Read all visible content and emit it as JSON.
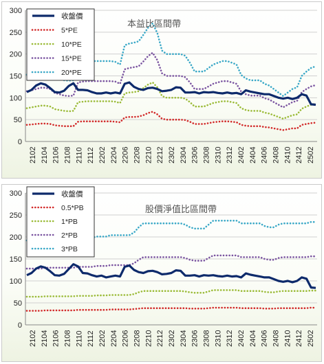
{
  "chart_data": [
    {
      "type": "line",
      "title": "本益比區間帶",
      "ylim": [
        0,
        300
      ],
      "yticks": [
        0,
        50,
        100,
        150,
        200,
        250,
        300
      ],
      "xtick_labels": [
        "2102",
        "2104",
        "2106",
        "2108",
        "2110",
        "2112",
        "2202",
        "2204",
        "2206",
        "2208",
        "2210",
        "2212",
        "2302",
        "2304",
        "2306",
        "2308",
        "2310",
        "2312",
        "2402",
        "2404",
        "2406",
        "2408",
        "2410",
        "2412",
        "2502"
      ],
      "grid": true,
      "legend_position": "top-left",
      "series": [
        {
          "name": "收盤價",
          "color": "#0d2a6b",
          "style": "solid",
          "values": [
            113,
            118,
            128,
            133,
            130,
            122,
            113,
            112,
            116,
            127,
            133,
            118,
            118,
            117,
            113,
            110,
            110,
            112,
            110,
            112,
            110,
            132,
            135,
            125,
            120,
            118,
            122,
            123,
            120,
            115,
            116,
            118,
            124,
            123,
            112,
            112,
            113,
            110,
            113,
            112,
            113,
            111,
            110,
            112,
            110,
            111,
            108,
            117,
            114,
            112,
            110,
            108,
            108,
            104,
            100,
            98,
            100,
            97,
            100,
            108,
            105,
            85,
            84
          ]
        },
        {
          "name": "5*PE",
          "color": "#d22a2a",
          "style": "dotted",
          "values": [
            38,
            39,
            40,
            41,
            41,
            40,
            37,
            36,
            35,
            35,
            35,
            45,
            46,
            46,
            46,
            46,
            46,
            46,
            46,
            45,
            44,
            55,
            56,
            56,
            57,
            60,
            65,
            68,
            62,
            52,
            50,
            50,
            50,
            50,
            49,
            45,
            40,
            40,
            40,
            42,
            44,
            45,
            46,
            46,
            45,
            44,
            38,
            36,
            35,
            35,
            35,
            33,
            32,
            30,
            28,
            26,
            28,
            30,
            30,
            38,
            40,
            42,
            43
          ]
        },
        {
          "name": "10*PE",
          "color": "#9bbb38",
          "style": "dotted",
          "values": [
            76,
            78,
            80,
            82,
            82,
            80,
            74,
            72,
            70,
            69,
            70,
            90,
            91,
            92,
            92,
            92,
            92,
            92,
            92,
            91,
            88,
            110,
            112,
            113,
            115,
            122,
            130,
            135,
            124,
            104,
            100,
            100,
            100,
            100,
            98,
            90,
            80,
            80,
            80,
            84,
            88,
            90,
            92,
            92,
            90,
            88,
            76,
            72,
            70,
            70,
            70,
            66,
            64,
            60,
            56,
            52,
            56,
            60,
            62,
            75,
            80,
            84,
            86
          ]
        },
        {
          "name": "15*PE",
          "color": "#7a54a0",
          "style": "dotted",
          "values": [
            115,
            117,
            120,
            123,
            123,
            120,
            111,
            108,
            105,
            104,
            105,
            135,
            137,
            138,
            138,
            138,
            138,
            138,
            138,
            137,
            132,
            165,
            168,
            170,
            172,
            183,
            195,
            203,
            186,
            156,
            150,
            150,
            150,
            150,
            147,
            135,
            120,
            120,
            120,
            126,
            132,
            135,
            138,
            138,
            135,
            132,
            114,
            108,
            105,
            105,
            105,
            99,
            96,
            90,
            84,
            78,
            84,
            90,
            93,
            113,
            120,
            126,
            129
          ]
        },
        {
          "name": "20*PE",
          "color": "#3aa8c7",
          "style": "dotted",
          "values": [
            153,
            156,
            160,
            164,
            164,
            160,
            148,
            144,
            140,
            139,
            140,
            180,
            182,
            184,
            184,
            184,
            184,
            184,
            184,
            182,
            176,
            220,
            224,
            226,
            229,
            244,
            260,
            270,
            248,
            208,
            200,
            200,
            200,
            200,
            196,
            180,
            160,
            160,
            160,
            168,
            176,
            180,
            184,
            184,
            180,
            176,
            152,
            144,
            140,
            140,
            140,
            132,
            128,
            120,
            112,
            104,
            112,
            120,
            124,
            150,
            160,
            168,
            172
          ]
        }
      ]
    },
    {
      "type": "line",
      "title": "股價淨值比區間帶",
      "ylim": [
        0,
        300
      ],
      "yticks": [
        0,
        50,
        100,
        150,
        200,
        250,
        300
      ],
      "xtick_labels": [
        "2102",
        "2104",
        "2106",
        "2108",
        "2110",
        "2112",
        "2202",
        "2204",
        "2206",
        "2208",
        "2210",
        "2212",
        "2302",
        "2304",
        "2306",
        "2308",
        "2310",
        "2312",
        "2402",
        "2404",
        "2406",
        "2408",
        "2410",
        "2412",
        "2502"
      ],
      "grid": true,
      "legend_position": "top-left",
      "series": [
        {
          "name": "收盤價",
          "color": "#0d2a6b",
          "style": "solid",
          "values": [
            113,
            118,
            128,
            133,
            130,
            122,
            113,
            112,
            116,
            127,
            138,
            133,
            118,
            117,
            113,
            110,
            112,
            108,
            110,
            112,
            110,
            132,
            135,
            125,
            120,
            118,
            122,
            123,
            120,
            115,
            116,
            118,
            124,
            123,
            112,
            112,
            113,
            110,
            113,
            112,
            113,
            111,
            110,
            112,
            110,
            111,
            108,
            117,
            114,
            112,
            110,
            108,
            108,
            104,
            100,
            98,
            100,
            97,
            100,
            108,
            105,
            85,
            84
          ]
        },
        {
          "name": "0.5*PB",
          "color": "#d22a2a",
          "style": "dotted",
          "values": [
            32,
            32,
            32,
            32,
            33,
            33,
            33,
            33,
            33,
            33,
            33,
            34,
            34,
            34,
            34,
            34,
            34,
            34,
            35,
            35,
            35,
            35,
            35,
            36,
            37,
            38,
            38,
            38,
            38,
            38,
            38,
            38,
            38,
            38,
            38,
            37,
            37,
            37,
            37,
            38,
            39,
            39,
            39,
            39,
            39,
            39,
            38,
            38,
            38,
            38,
            38,
            37,
            37,
            37,
            38,
            38,
            38,
            38,
            38,
            38,
            38,
            39,
            39
          ]
        },
        {
          "name": "1*PB",
          "color": "#9bbb38",
          "style": "dotted",
          "values": [
            64,
            64,
            64,
            64,
            65,
            65,
            65,
            65,
            65,
            65,
            65,
            66,
            66,
            66,
            66,
            67,
            67,
            67,
            68,
            68,
            68,
            68,
            68,
            70,
            74,
            77,
            77,
            77,
            77,
            77,
            77,
            77,
            77,
            77,
            76,
            74,
            73,
            73,
            73,
            76,
            79,
            79,
            79,
            79,
            79,
            79,
            77,
            77,
            77,
            77,
            77,
            75,
            74,
            74,
            76,
            77,
            77,
            77,
            77,
            77,
            77,
            78,
            78
          ]
        },
        {
          "name": "2*PB",
          "color": "#7a54a0",
          "style": "dotted",
          "values": [
            128,
            128,
            128,
            128,
            130,
            130,
            130,
            130,
            130,
            130,
            130,
            132,
            132,
            132,
            132,
            134,
            134,
            134,
            136,
            136,
            136,
            136,
            136,
            140,
            148,
            154,
            154,
            154,
            154,
            154,
            154,
            154,
            154,
            154,
            152,
            148,
            146,
            146,
            146,
            152,
            158,
            158,
            158,
            158,
            158,
            158,
            154,
            154,
            154,
            154,
            154,
            150,
            148,
            148,
            152,
            154,
            154,
            154,
            154,
            154,
            154,
            156,
            156
          ]
        },
        {
          "name": "3*PB",
          "color": "#3aa8c7",
          "style": "dotted",
          "values": [
            192,
            192,
            192,
            192,
            195,
            195,
            195,
            195,
            195,
            195,
            195,
            198,
            198,
            198,
            198,
            201,
            201,
            201,
            204,
            204,
            204,
            204,
            204,
            210,
            222,
            231,
            231,
            231,
            231,
            231,
            231,
            231,
            231,
            231,
            228,
            222,
            219,
            219,
            219,
            228,
            237,
            237,
            237,
            237,
            237,
            237,
            231,
            231,
            231,
            231,
            231,
            225,
            222,
            222,
            228,
            231,
            231,
            231,
            231,
            231,
            231,
            234,
            234
          ]
        }
      ]
    }
  ]
}
